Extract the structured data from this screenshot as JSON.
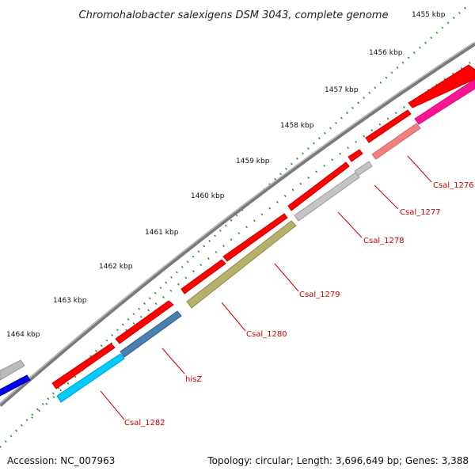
{
  "title": "Chromohalobacter salexigens DSM 3043, complete genome",
  "accession": "Accession: NC_007963",
  "summary": "Topology: circular; Length: 3,696,649 bp; Genes: 3,388",
  "ticks": [
    {
      "label": "1455 kbp"
    },
    {
      "label": "1456 kbp"
    },
    {
      "label": "1457 kbp"
    },
    {
      "label": "1458 kbp"
    },
    {
      "label": "1459 kbp"
    },
    {
      "label": "1460 kbp"
    },
    {
      "label": "1461 kbp"
    },
    {
      "label": "1462 kbp"
    },
    {
      "label": "1463 kbp"
    },
    {
      "label": "1464 kbp"
    }
  ],
  "gene_labels": [
    "Csal_1276",
    "Csal_1277",
    "Csal_1278",
    "Csal_1279",
    "Csal_1280",
    "hisZ",
    "Csal_1282"
  ],
  "colors": {
    "backbone": "#888888",
    "cds": "#ff0000",
    "tick": "#2a8a2a",
    "label": "#cc0000"
  }
}
